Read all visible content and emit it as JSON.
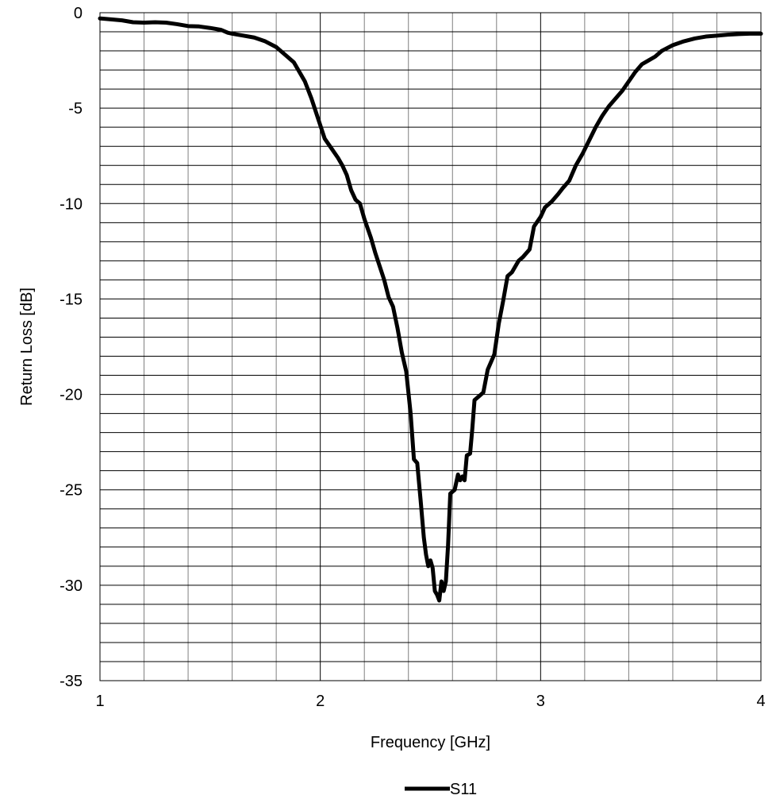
{
  "chart_data": {
    "type": "line",
    "title": "",
    "xlabel": "Frequency [GHz]",
    "ylabel": "Return Loss [dB]",
    "xlim": [
      1,
      4
    ],
    "ylim": [
      -35,
      0
    ],
    "x_ticks": [
      1,
      2,
      3,
      4
    ],
    "y_ticks": [
      0,
      -5,
      -10,
      -15,
      -20,
      -25,
      -30,
      -35
    ],
    "x_minor_step": 0.2,
    "y_minor_step": 1,
    "grid": true,
    "legend_position": "bottom-center",
    "series": [
      {
        "name": "S11",
        "color": "#000000",
        "points": [
          [
            1.0,
            -0.3
          ],
          [
            1.05,
            -0.35
          ],
          [
            1.1,
            -0.4
          ],
          [
            1.15,
            -0.5
          ],
          [
            1.2,
            -0.52
          ],
          [
            1.25,
            -0.5
          ],
          [
            1.3,
            -0.52
          ],
          [
            1.35,
            -0.6
          ],
          [
            1.4,
            -0.7
          ],
          [
            1.45,
            -0.72
          ],
          [
            1.5,
            -0.8
          ],
          [
            1.55,
            -0.9
          ],
          [
            1.58,
            -1.05
          ],
          [
            1.6,
            -1.1
          ],
          [
            1.65,
            -1.2
          ],
          [
            1.7,
            -1.3
          ],
          [
            1.75,
            -1.5
          ],
          [
            1.8,
            -1.8
          ],
          [
            1.85,
            -2.3
          ],
          [
            1.88,
            -2.6
          ],
          [
            1.9,
            -3.0
          ],
          [
            1.93,
            -3.6
          ],
          [
            1.96,
            -4.5
          ],
          [
            1.98,
            -5.2
          ],
          [
            2.0,
            -5.9
          ],
          [
            2.02,
            -6.6
          ],
          [
            2.05,
            -7.1
          ],
          [
            2.08,
            -7.6
          ],
          [
            2.1,
            -8.0
          ],
          [
            2.12,
            -8.5
          ],
          [
            2.14,
            -9.3
          ],
          [
            2.16,
            -9.8
          ],
          [
            2.18,
            -10.0
          ],
          [
            2.2,
            -10.8
          ],
          [
            2.23,
            -11.8
          ],
          [
            2.25,
            -12.6
          ],
          [
            2.27,
            -13.3
          ],
          [
            2.29,
            -14.0
          ],
          [
            2.31,
            -14.9
          ],
          [
            2.33,
            -15.4
          ],
          [
            2.35,
            -16.5
          ],
          [
            2.37,
            -17.8
          ],
          [
            2.39,
            -18.8
          ],
          [
            2.41,
            -21.0
          ],
          [
            2.425,
            -23.4
          ],
          [
            2.44,
            -23.6
          ],
          [
            2.455,
            -25.5
          ],
          [
            2.47,
            -27.5
          ],
          [
            2.48,
            -28.4
          ],
          [
            2.49,
            -29.0
          ],
          [
            2.5,
            -28.7
          ],
          [
            2.51,
            -29.1
          ],
          [
            2.52,
            -30.3
          ],
          [
            2.53,
            -30.5
          ],
          [
            2.54,
            -30.8
          ],
          [
            2.55,
            -29.8
          ],
          [
            2.56,
            -30.3
          ],
          [
            2.57,
            -29.8
          ],
          [
            2.58,
            -27.9
          ],
          [
            2.59,
            -25.2
          ],
          [
            2.61,
            -25.0
          ],
          [
            2.625,
            -24.2
          ],
          [
            2.635,
            -24.5
          ],
          [
            2.645,
            -24.3
          ],
          [
            2.655,
            -24.5
          ],
          [
            2.665,
            -23.2
          ],
          [
            2.68,
            -23.1
          ],
          [
            2.69,
            -21.8
          ],
          [
            2.7,
            -20.3
          ],
          [
            2.72,
            -20.1
          ],
          [
            2.74,
            -19.9
          ],
          [
            2.76,
            -18.7
          ],
          [
            2.79,
            -17.9
          ],
          [
            2.81,
            -16.3
          ],
          [
            2.83,
            -15.1
          ],
          [
            2.85,
            -13.8
          ],
          [
            2.87,
            -13.6
          ],
          [
            2.9,
            -13.0
          ],
          [
            2.92,
            -12.8
          ],
          [
            2.95,
            -12.4
          ],
          [
            2.97,
            -11.2
          ],
          [
            3.0,
            -10.7
          ],
          [
            3.02,
            -10.2
          ],
          [
            3.05,
            -9.9
          ],
          [
            3.08,
            -9.5
          ],
          [
            3.1,
            -9.2
          ],
          [
            3.13,
            -8.8
          ],
          [
            3.16,
            -8.0
          ],
          [
            3.19,
            -7.4
          ],
          [
            3.22,
            -6.7
          ],
          [
            3.25,
            -6.0
          ],
          [
            3.28,
            -5.4
          ],
          [
            3.31,
            -4.9
          ],
          [
            3.34,
            -4.5
          ],
          [
            3.37,
            -4.1
          ],
          [
            3.4,
            -3.6
          ],
          [
            3.43,
            -3.1
          ],
          [
            3.46,
            -2.7
          ],
          [
            3.49,
            -2.5
          ],
          [
            3.52,
            -2.3
          ],
          [
            3.55,
            -2.0
          ],
          [
            3.6,
            -1.7
          ],
          [
            3.65,
            -1.5
          ],
          [
            3.7,
            -1.35
          ],
          [
            3.75,
            -1.25
          ],
          [
            3.8,
            -1.2
          ],
          [
            3.85,
            -1.15
          ],
          [
            3.9,
            -1.12
          ],
          [
            3.95,
            -1.1
          ],
          [
            4.0,
            -1.1
          ]
        ]
      }
    ]
  }
}
